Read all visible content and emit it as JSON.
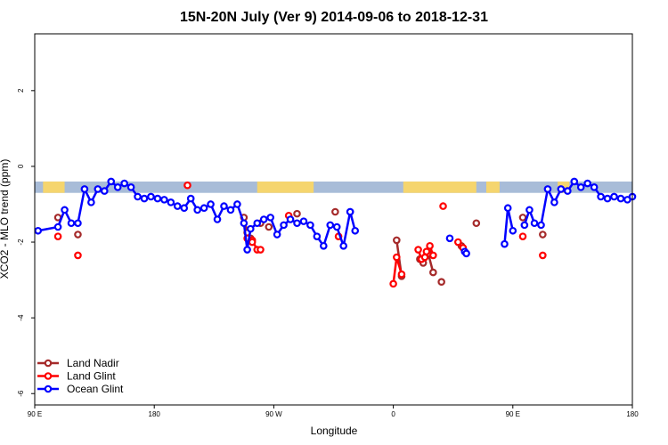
{
  "chart_data": {
    "type": "line",
    "title": "15N-20N July (Ver 9)   2014-09-06 to 2018-12-31",
    "xlabel": "Longitude",
    "ylabel": "XCO2 - MLO trend (ppm)",
    "xlim": [
      20,
      380
    ],
    "ylim": [
      -6.3,
      3.5
    ],
    "xticks": [
      {
        "value": 20,
        "label": "90 E"
      },
      {
        "value": 92,
        "label": "180"
      },
      {
        "value": 164,
        "label": "90 W"
      },
      {
        "value": 236,
        "label": "0"
      },
      {
        "value": 308,
        "label": "90 E"
      },
      {
        "value": 380,
        "label": "180"
      }
    ],
    "yticks": [
      {
        "value": -6,
        "label": "-6"
      },
      {
        "value": -4,
        "label": "-4"
      },
      {
        "value": -2,
        "label": "-2"
      },
      {
        "value": 0,
        "label": "0"
      },
      {
        "value": 2,
        "label": "2"
      }
    ],
    "grid": false,
    "legend_position": "bottom-left",
    "land_band": {
      "y_top": -0.4,
      "y_bottom": -0.7,
      "ocean_color": "#a8bcd8",
      "land_color": "#f5d56e",
      "land_ranges": [
        [
          25,
          38
        ],
        [
          154,
          188
        ],
        [
          242,
          286
        ],
        [
          292,
          300
        ],
        [
          335,
          342
        ]
      ]
    },
    "series": [
      {
        "name": "Land Nadir",
        "color": "#a52a2a",
        "segments": [
          {
            "x": [
              34
            ],
            "y": [
              -1.35
            ]
          },
          {
            "x": [
              46
            ],
            "y": [
              -1.8
            ]
          },
          {
            "x": [
              146,
              148,
              150
            ],
            "y": [
              -1.35,
              -1.75,
              -1.9
            ]
          },
          {
            "x": [
              156
            ],
            "y": [
              -1.5
            ]
          },
          {
            "x": [
              161
            ],
            "y": [
              -1.6
            ]
          },
          {
            "x": [
              178
            ],
            "y": [
              -1.25
            ]
          },
          {
            "x": [
              201
            ],
            "y": [
              -1.2
            ]
          },
          {
            "x": [
              238,
              241
            ],
            "y": [
              -1.95,
              -2.9
            ]
          },
          {
            "x": [
              252,
              254,
              257,
              260
            ],
            "y": [
              -2.45,
              -2.55,
              -2.3,
              -2.8
            ]
          },
          {
            "x": [
              265
            ],
            "y": [
              -3.05
            ]
          },
          {
            "x": [
              277
            ],
            "y": [
              -2.1
            ]
          },
          {
            "x": [
              286
            ],
            "y": [
              -1.5
            ]
          },
          {
            "x": [
              314
            ],
            "y": [
              -1.35
            ]
          },
          {
            "x": [
              326
            ],
            "y": [
              -1.8
            ]
          }
        ]
      },
      {
        "name": "Land Glint",
        "color": "#ff0000",
        "segments": [
          {
            "x": [
              34
            ],
            "y": [
              -1.85
            ]
          },
          {
            "x": [
              46
            ],
            "y": [
              -2.35
            ]
          },
          {
            "x": [
              112
            ],
            "y": [
              -0.5
            ]
          },
          {
            "x": [
              148,
              151,
              154,
              156
            ],
            "y": [
              -1.9,
              -1.95,
              -2.2,
              -2.2
            ]
          },
          {
            "x": [
              151
            ],
            "y": [
              -2.0
            ]
          },
          {
            "x": [
              173
            ],
            "y": [
              -1.3
            ]
          },
          {
            "x": [
              203
            ],
            "y": [
              -1.85
            ]
          },
          {
            "x": [
              236,
              238,
              241
            ],
            "y": [
              -3.1,
              -2.4,
              -2.85
            ]
          },
          {
            "x": [
              251,
              253,
              255,
              258,
              260
            ],
            "y": [
              -2.2,
              -2.45,
              -2.4,
              -2.1,
              -2.35
            ]
          },
          {
            "x": [
              256
            ],
            "y": [
              -2.25
            ]
          },
          {
            "x": [
              266
            ],
            "y": [
              -1.05
            ]
          },
          {
            "x": [
              275,
              278
            ],
            "y": [
              -2.0,
              -2.15
            ]
          },
          {
            "x": [
              314
            ],
            "y": [
              -1.85
            ]
          },
          {
            "x": [
              326
            ],
            "y": [
              -2.35
            ]
          }
        ]
      },
      {
        "name": "Ocean Glint",
        "color": "#0000ff",
        "segments": [
          {
            "x": [
              22,
              34,
              38,
              42,
              46,
              50,
              54,
              58,
              62,
              66,
              70,
              74,
              78,
              82,
              86,
              90,
              94,
              98,
              102,
              106,
              110,
              114,
              118,
              122,
              126,
              130,
              134,
              138,
              142,
              146,
              148,
              150,
              154,
              158,
              162,
              166,
              170,
              174,
              178,
              182,
              186,
              190,
              194,
              198,
              202,
              206,
              210
            ],
            "y": [
              -1.7,
              -1.6,
              -1.15,
              -1.5,
              -1.5,
              -0.6,
              -0.95,
              -0.6,
              -0.65,
              -0.4,
              -0.55,
              -0.45,
              -0.55,
              -0.8,
              -0.85,
              -0.8,
              -0.85,
              -0.88,
              -0.95,
              -1.05,
              -1.1,
              -0.85,
              -1.15,
              -1.1,
              -1.0,
              -1.4,
              -1.05,
              -1.15,
              -1.0,
              -1.5,
              -2.2,
              -1.65,
              -1.5,
              -1.4,
              -1.35,
              -1.8,
              -1.55,
              -1.4,
              -1.5,
              -1.45,
              -1.55,
              -1.85,
              -2.1,
              -1.55,
              -1.6,
              -2.1,
              -1.2
            ]
          },
          {
            "x": [
              210,
              213
            ],
            "y": [
              -1.2,
              -1.7
            ]
          },
          {
            "x": [
              270
            ],
            "y": [
              -1.9
            ]
          },
          {
            "x": [
              279,
              280
            ],
            "y": [
              -2.25,
              -2.3
            ]
          },
          {
            "x": [
              303,
              305,
              308
            ],
            "y": [
              -2.05,
              -1.1,
              -1.7
            ]
          },
          {
            "x": [
              315,
              318,
              321,
              325,
              329,
              333,
              337,
              341,
              345,
              349,
              353,
              357,
              361,
              365,
              369,
              373,
              377,
              380
            ],
            "y": [
              -1.55,
              -1.15,
              -1.5,
              -1.55,
              -0.6,
              -0.95,
              -0.6,
              -0.65,
              -0.4,
              -0.55,
              -0.45,
              -0.55,
              -0.8,
              -0.85,
              -0.8,
              -0.85,
              -0.88,
              -0.8
            ]
          }
        ]
      }
    ]
  }
}
